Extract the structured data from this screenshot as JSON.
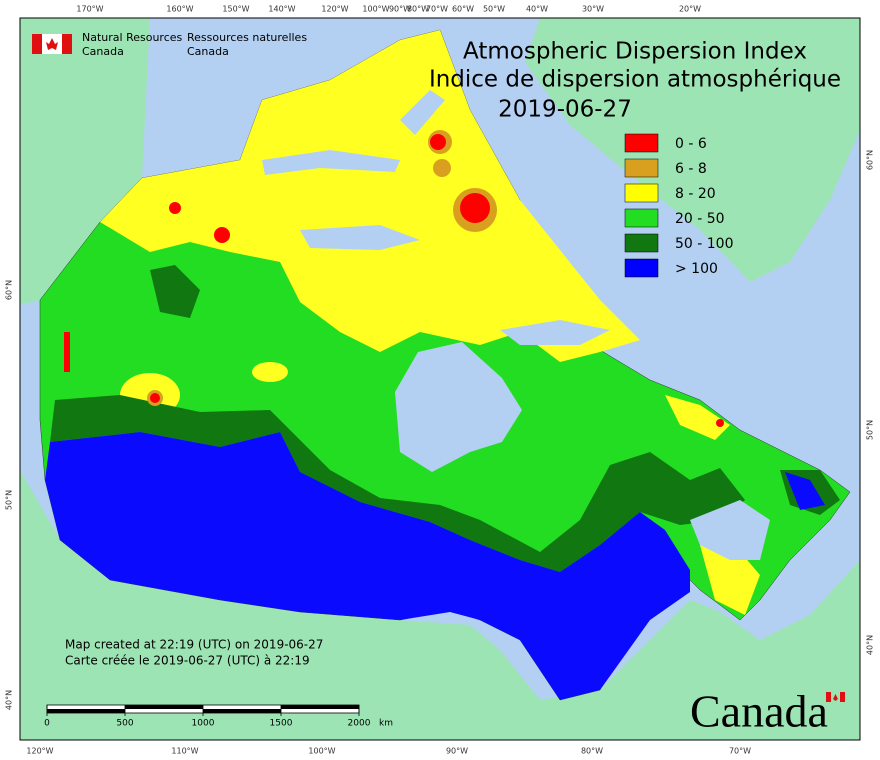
{
  "header": {
    "org_en": [
      "Natural Resources",
      "Canada"
    ],
    "org_fr": [
      "Ressources naturelles",
      "Canada"
    ]
  },
  "title": {
    "en": "Atmospheric Dispersion Index",
    "fr": "Indice de dispersion atmosphérique",
    "date": "2019-06-27"
  },
  "legend": {
    "items": [
      {
        "label": "0 - 6",
        "color": "#ff0000"
      },
      {
        "label": "6 - 8",
        "color": "#d9a020"
      },
      {
        "label": "8 - 20",
        "color": "#ffff00"
      },
      {
        "label": "20 - 50",
        "color": "#22dd22"
      },
      {
        "label": "50 - 100",
        "color": "#117711"
      },
      {
        "label": "> 100",
        "color": "#0000ff"
      }
    ]
  },
  "credits": [
    "Map created at 22:19 (UTC) on 2019-06-27",
    "Carte créée le 2019-06-27 (UTC) à 22:19"
  ],
  "scale_bar": {
    "ticks": [
      0,
      500,
      1000,
      1500,
      2000
    ],
    "unit": "km"
  },
  "graticule": {
    "top": [
      "170°W",
      "160°W",
      "150°W",
      "140°W",
      "120°W",
      "100°W",
      "90°W",
      "80°W",
      "70°W",
      "60°W",
      "50°W",
      "40°W",
      "30°W",
      "20°W"
    ],
    "bottom": [
      "120°W",
      "110°W",
      "100°W",
      "90°W",
      "80°W",
      "70°W"
    ],
    "left": [
      "60°N",
      "50°N",
      "40°N"
    ],
    "right": [
      "60°N",
      "50°N",
      "40°N"
    ]
  },
  "wordmark": "Canada"
}
